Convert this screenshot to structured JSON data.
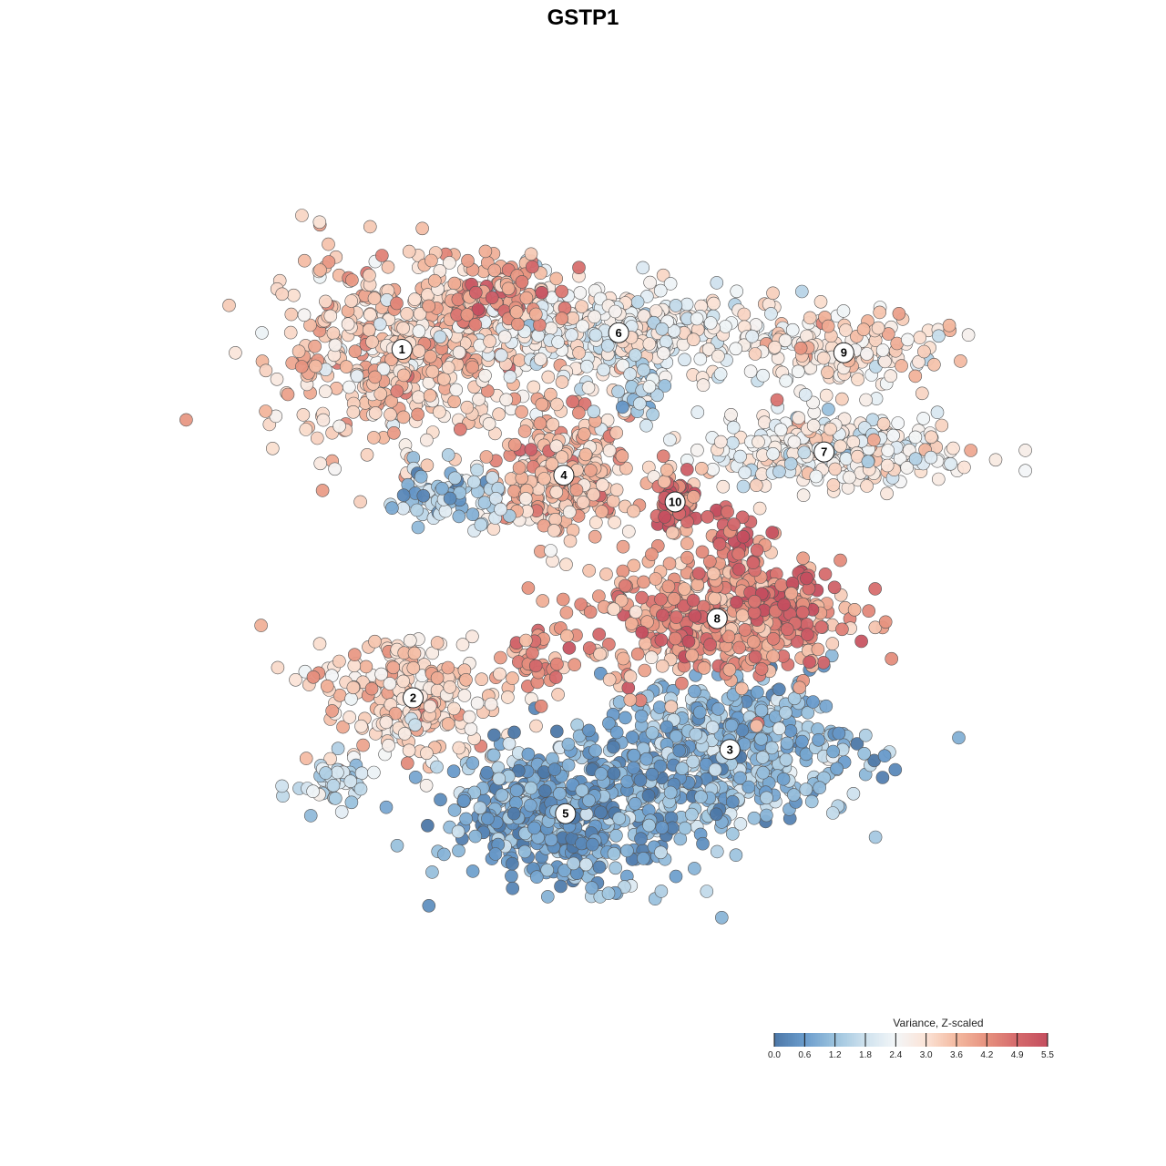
{
  "chart_data": {
    "type": "scatter",
    "title": "GSTP1",
    "xlabel": "",
    "ylabel": "",
    "grid": false,
    "axes_visible": false,
    "xlim": [
      0,
      100
    ],
    "ylim": [
      0,
      100
    ],
    "legend": {
      "title": "Variance, Z-scaled",
      "placement": "bottom-right",
      "range": [
        0.0,
        5.5
      ],
      "ticks": [
        "0.0",
        "0.6",
        "1.2",
        "1.8",
        "2.4",
        "3.0",
        "3.6",
        "4.2",
        "4.9",
        "5.5"
      ],
      "colors": [
        "#4d78a8",
        "#6a9ccc",
        "#9cc3de",
        "#cfe2ee",
        "#f3f6f8",
        "#fbe3d6",
        "#f3b9a0",
        "#e6917e",
        "#d56a6c",
        "#c44e5f"
      ]
    },
    "clusters": [
      {
        "label": "1",
        "x": 26.2,
        "y": 78.3,
        "sx": 10.5,
        "sy": 7.5,
        "value": 3.4,
        "n": 520
      },
      {
        "label": "2",
        "x": 27.5,
        "y": 36.5,
        "sx": 7.0,
        "sy": 5.5,
        "value": 3.3,
        "n": 230
      },
      {
        "label": "3",
        "x": 64.5,
        "y": 30.3,
        "sx": 10.0,
        "sy": 5.5,
        "value": 1.1,
        "n": 480
      },
      {
        "label": "4",
        "x": 45.1,
        "y": 63.2,
        "sx": 5.2,
        "sy": 5.0,
        "value": 3.6,
        "n": 300
      },
      {
        "label": "5",
        "x": 45.3,
        "y": 22.6,
        "sx": 9.5,
        "sy": 5.5,
        "value": 0.8,
        "n": 520
      },
      {
        "label": "6",
        "x": 51.5,
        "y": 80.3,
        "sx": 11.5,
        "sy": 3.8,
        "value": 2.5,
        "n": 380
      },
      {
        "label": "7",
        "x": 75.5,
        "y": 66.0,
        "sx": 9.5,
        "sy": 3.0,
        "value": 2.6,
        "n": 300
      },
      {
        "label": "8",
        "x": 63.0,
        "y": 46.0,
        "sx": 10.0,
        "sy": 5.5,
        "value": 4.1,
        "n": 420
      },
      {
        "label": "9",
        "x": 77.8,
        "y": 77.9,
        "sx": 7.0,
        "sy": 3.2,
        "value": 3.0,
        "n": 160
      },
      {
        "label": "10",
        "x": 58.1,
        "y": 60.0,
        "sx": 1.8,
        "sy": 2.2,
        "value": 4.9,
        "n": 70
      }
    ],
    "hotspots": [
      {
        "x": 71.0,
        "y": 47.5,
        "sx": 3.5,
        "sy": 2.5,
        "value": 5.2,
        "n": 55
      },
      {
        "x": 65.5,
        "y": 55.5,
        "sx": 2.2,
        "sy": 3.0,
        "value": 5.0,
        "n": 35
      },
      {
        "x": 60.0,
        "y": 45.0,
        "sx": 2.0,
        "sy": 3.0,
        "value": 4.8,
        "n": 30
      },
      {
        "x": 38.5,
        "y": 85.0,
        "sx": 4.5,
        "sy": 3.0,
        "value": 4.3,
        "n": 80
      },
      {
        "x": 42.0,
        "y": 41.0,
        "sx": 3.0,
        "sy": 2.5,
        "value": 4.3,
        "n": 40
      }
    ],
    "outliers": [
      {
        "x": 18.5,
        "y": 26.5,
        "sx": 3.0,
        "sy": 2.0,
        "value": 1.6,
        "n": 45
      },
      {
        "x": 31.0,
        "y": 60.5,
        "sx": 4.5,
        "sy": 2.5,
        "value": 1.3,
        "n": 80
      },
      {
        "x": 54.0,
        "y": 73.0,
        "sx": 1.5,
        "sy": 2.5,
        "value": 1.7,
        "n": 35
      }
    ]
  }
}
